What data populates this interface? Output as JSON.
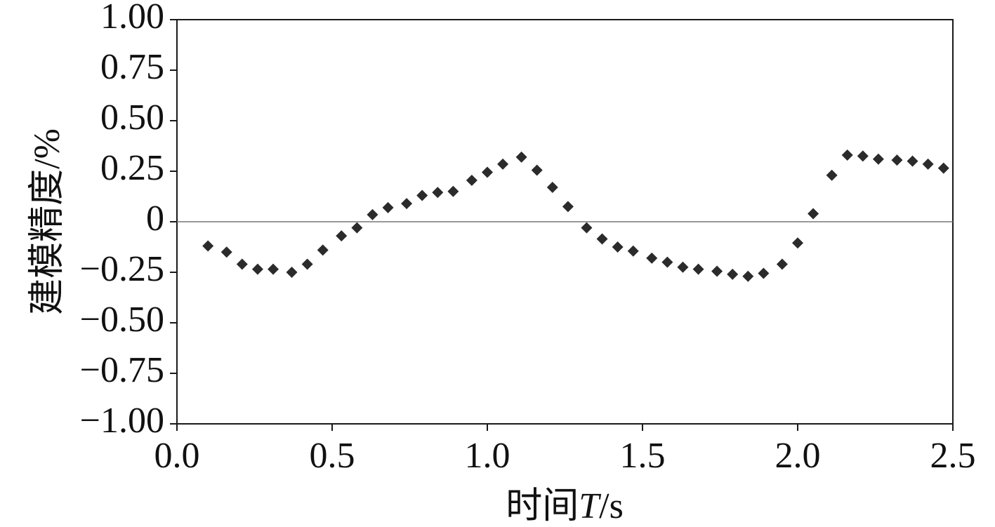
{
  "chart_data": {
    "type": "scatter",
    "marker": "diamond",
    "marker_color": "#2b2b2b",
    "xlabel": {
      "prefix": "时间",
      "symbol": "T",
      "unit": "/s"
    },
    "ylabel": "建模精度/%",
    "xlim": [
      0.0,
      2.5
    ],
    "ylim": [
      -1.0,
      1.0
    ],
    "x_ticks": [
      0.0,
      0.5,
      1.0,
      1.5,
      2.0,
      2.5
    ],
    "x_tick_labels": [
      "0.0",
      "0.5",
      "1.0",
      "1.5",
      "2.0",
      "2.5"
    ],
    "y_ticks": [
      1.0,
      0.75,
      0.5,
      0.25,
      0,
      -0.25,
      -0.5,
      -0.75,
      -1.0
    ],
    "y_tick_labels": [
      "1.00",
      "0.75",
      "0.50",
      "0.25",
      "0",
      "−0.25",
      "−0.50",
      "−0.75",
      "−1.00"
    ],
    "zero_line": true,
    "grid": false,
    "legend": "none",
    "x": [
      0.1,
      0.16,
      0.21,
      0.26,
      0.31,
      0.37,
      0.42,
      0.47,
      0.53,
      0.58,
      0.63,
      0.68,
      0.74,
      0.79,
      0.84,
      0.89,
      0.95,
      1.0,
      1.05,
      1.11,
      1.16,
      1.21,
      1.26,
      1.32,
      1.37,
      1.42,
      1.47,
      1.53,
      1.58,
      1.63,
      1.68,
      1.74,
      1.79,
      1.84,
      1.89,
      1.95,
      2.0,
      2.05,
      2.11,
      2.16,
      2.21,
      2.26,
      2.32,
      2.37,
      2.42,
      2.47
    ],
    "y": [
      -0.12,
      -0.15,
      -0.21,
      -0.235,
      -0.235,
      -0.25,
      -0.21,
      -0.14,
      -0.07,
      -0.03,
      0.035,
      0.07,
      0.09,
      0.13,
      0.145,
      0.15,
      0.205,
      0.245,
      0.285,
      0.32,
      0.255,
      0.17,
      0.075,
      -0.03,
      -0.085,
      -0.125,
      -0.145,
      -0.18,
      -0.2,
      -0.225,
      -0.235,
      -0.245,
      -0.26,
      -0.27,
      -0.255,
      -0.21,
      -0.105,
      0.04,
      0.23,
      0.33,
      0.325,
      0.31,
      0.305,
      0.3,
      0.285,
      0.265
    ]
  }
}
